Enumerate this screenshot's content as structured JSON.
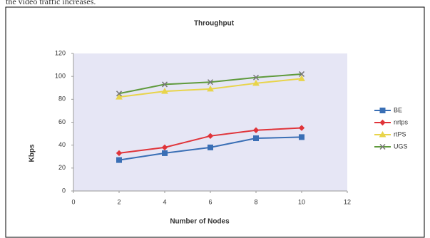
{
  "caption": "the video traffic increases.",
  "chart_data": {
    "type": "line",
    "title": "Throughput",
    "x_label": "Number of Nodes",
    "y_label": "Kbps",
    "x": [
      2,
      4,
      6,
      8,
      10
    ],
    "series": [
      {
        "name": "BE",
        "color": "#3a6fb5",
        "marker": "square",
        "values": [
          27,
          33,
          38,
          46,
          47
        ]
      },
      {
        "name": "nrtps",
        "color": "#e0343a",
        "marker": "diamond",
        "values": [
          33,
          38,
          48,
          53,
          55
        ]
      },
      {
        "name": "rtPS",
        "color": "#e8d44a",
        "marker": "triangle",
        "values": [
          82,
          87,
          89,
          94,
          98
        ]
      },
      {
        "name": "UGS",
        "color": "#5f9a3c",
        "marker": "cross",
        "values": [
          85,
          93,
          95,
          99,
          102
        ]
      }
    ],
    "xlim": [
      0,
      12
    ],
    "xticks": [
      0,
      2,
      4,
      6,
      8,
      10,
      12
    ],
    "ylim": [
      0,
      120
    ],
    "yticks": [
      0,
      20,
      40,
      60,
      80,
      100,
      120
    ],
    "legend": "right"
  }
}
